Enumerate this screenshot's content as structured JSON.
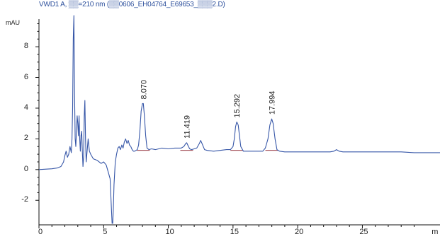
{
  "chart_data": {
    "type": "line",
    "title": "VWD1 A, ▒▒=210 nm (▒▒0606_EH04764_E69653_▒▒▒2.D)",
    "ylabel": "mAU",
    "xlabel": "",
    "xlim": [
      0,
      31
    ],
    "ylim": [
      -3.6,
      9.8
    ],
    "y_ticks": [
      -2,
      0,
      2,
      4,
      6,
      8
    ],
    "x_ticks": [
      0,
      5,
      10,
      15,
      20,
      25,
      "m"
    ],
    "grid": false,
    "series": [
      {
        "x": [
          0,
          1,
          1.4,
          1.7,
          1.9,
          2.0,
          2.1,
          2.2,
          2.3,
          2.4,
          2.5,
          2.55,
          2.6,
          2.65,
          2.7,
          2.75,
          2.8,
          2.85,
          2.9,
          2.95,
          3.0,
          3.05,
          3.1,
          3.15,
          3.2,
          3.25,
          3.3,
          3.35,
          3.4,
          3.45,
          3.5,
          3.55,
          3.6,
          3.65,
          3.7,
          3.8,
          3.9,
          4.0,
          4.2,
          4.5,
          4.8,
          5.0,
          5.2,
          5.4,
          5.5,
          5.6,
          5.65,
          5.7,
          5.75,
          5.8,
          5.9,
          6.0,
          6.1,
          6.2,
          6.3,
          6.4,
          6.5,
          6.6,
          6.7,
          6.8,
          6.9,
          7.0,
          7.1,
          7.2,
          7.3,
          7.4,
          7.5,
          7.6,
          7.7,
          7.8,
          7.9,
          8.0,
          8.07,
          8.15,
          8.25,
          8.35,
          8.5,
          8.7,
          9.0,
          9.5,
          10.0,
          10.5,
          11.0,
          11.2,
          11.35,
          11.42,
          11.5,
          11.65,
          11.8,
          12.0,
          12.2,
          12.4,
          12.5,
          12.6,
          12.8,
          13.0,
          13.5,
          14.0,
          14.5,
          14.8,
          15.0,
          15.1,
          15.2,
          15.29,
          15.4,
          15.5,
          15.6,
          15.8,
          16.0,
          16.5,
          17.0,
          17.3,
          17.5,
          17.7,
          17.85,
          17.99,
          18.1,
          18.25,
          18.4,
          18.6,
          19.0,
          20.0,
          21.0,
          22.0,
          22.5,
          22.8,
          23.0,
          23.2,
          23.5,
          24.0,
          25.0,
          26.0,
          27.0,
          28.0,
          29.0,
          30.0,
          31.0
        ],
        "y": [
          0,
          0.05,
          0.1,
          0.2,
          0.5,
          0.9,
          1.2,
          0.8,
          1.0,
          1.5,
          1.1,
          2.0,
          4.0,
          8.5,
          10.5,
          5.0,
          2.0,
          1.5,
          2.5,
          3.5,
          3.0,
          2.2,
          3.5,
          2.0,
          1.2,
          2.2,
          2.5,
          1.2,
          0.2,
          0.8,
          3.5,
          4.5,
          2.0,
          0.5,
          1.0,
          2.0,
          1.2,
          1.0,
          0.7,
          0.6,
          0.4,
          0.5,
          0.3,
          -0.3,
          -0.6,
          -2.5,
          -3.5,
          -3.5,
          -2.5,
          -1.0,
          0.5,
          1.0,
          1.4,
          1.5,
          1.3,
          1.6,
          1.4,
          1.8,
          2.0,
          1.7,
          1.9,
          1.6,
          1.5,
          1.3,
          1.2,
          1.2,
          1.25,
          1.3,
          1.6,
          2.5,
          3.8,
          4.3,
          4.3,
          3.5,
          2.2,
          1.4,
          1.3,
          1.35,
          1.3,
          1.4,
          1.35,
          1.4,
          1.4,
          1.5,
          1.7,
          1.75,
          1.6,
          1.35,
          1.3,
          1.35,
          1.4,
          1.7,
          1.9,
          1.7,
          1.3,
          1.25,
          1.2,
          1.25,
          1.3,
          1.3,
          1.5,
          2.0,
          2.8,
          3.1,
          2.9,
          2.2,
          1.5,
          1.2,
          1.2,
          1.2,
          1.2,
          1.2,
          1.4,
          2.0,
          2.9,
          3.3,
          3.0,
          2.0,
          1.3,
          1.2,
          1.15,
          1.15,
          1.15,
          1.15,
          1.15,
          1.2,
          1.3,
          1.2,
          1.15,
          1.15,
          1.15,
          1.15,
          1.15,
          1.15,
          1.1,
          1.1,
          1.1
        ]
      }
    ],
    "peak_labels": [
      {
        "x": 8.07,
        "y": 4.3,
        "label": "8.070"
      },
      {
        "x": 11.419,
        "y": 1.75,
        "label": "11.419"
      },
      {
        "x": 15.292,
        "y": 3.1,
        "label": "15.292"
      },
      {
        "x": 17.994,
        "y": 3.3,
        "label": "17.994"
      }
    ],
    "colors": {
      "trace": "#3757a8",
      "axis": "#111111",
      "title": "#2c4f9c",
      "baseline": "#8a1f2a"
    }
  }
}
